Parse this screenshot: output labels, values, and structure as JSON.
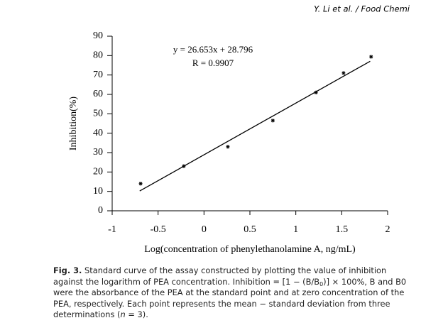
{
  "header": {
    "citation": "Y. Li et al. / Food Chemi"
  },
  "chart_data": {
    "type": "scatter",
    "xlabel": "Log(concentration of phenylethanolamine A, ng/mL)",
    "ylabel": "Inhibition(%)",
    "annotations": [
      "y = 26.653x + 28.796",
      "R = 0.9907"
    ],
    "series": [
      {
        "color": "#000000",
        "x": [
          -0.69,
          -0.22,
          0.26,
          0.75,
          1.22,
          1.52,
          1.82
        ],
        "values": [
          14,
          23,
          33,
          46.5,
          61,
          71,
          79.4
        ],
        "errors": [
          1,
          1,
          1,
          1,
          1,
          1,
          1
        ]
      }
    ],
    "fit": {
      "color": "#000000",
      "x": [
        -0.7,
        1.81
      ],
      "values": [
        10.2,
        77.1
      ]
    },
    "xlim": [
      -1,
      2
    ],
    "xticks": [
      -1,
      -0.5,
      0,
      0.5,
      1,
      1.5,
      2
    ],
    "ylim": [
      0,
      90
    ],
    "yticks": [
      0,
      10,
      20,
      30,
      40,
      50,
      60,
      70,
      80,
      90
    ]
  },
  "caption": {
    "label": "Fig. 3.",
    "segments": [
      {
        "text": " Standard curve of the assay constructed by plotting the value of inhibition against the logarithm of PEA concentration. Inhibition = [1 − (B/B"
      },
      {
        "text": "0",
        "style": "sub"
      },
      {
        "text": ")] × 100%, B and B0 were the absorbance of the PEA at the standard point and at zero concentration of the PEA, respectively. Each point represents the mean − standard deviation from three determinations ("
      },
      {
        "text": "n",
        "style": "italic"
      },
      {
        "text": " = 3)."
      }
    ]
  }
}
